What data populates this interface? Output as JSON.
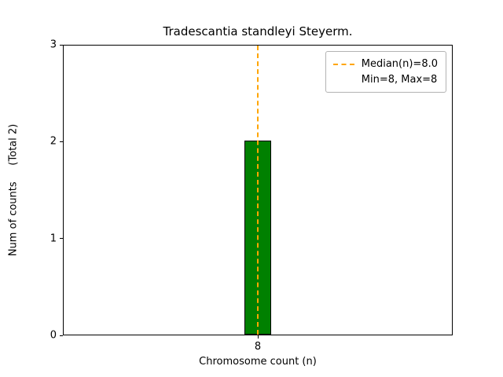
{
  "chart_data": {
    "type": "bar",
    "title": "Tradescantia standleyi Steyerm.",
    "xlabel": "Chromosome count (n)",
    "ylabel": "Num of counts     (Total 2)",
    "categories": [
      "8"
    ],
    "values": [
      2
    ],
    "total": 2,
    "ylim": [
      0,
      3
    ],
    "yticks": [
      0,
      1,
      2,
      3
    ],
    "bar_color": "#008000",
    "bar_edge_color": "#000000",
    "median": 8.0,
    "min": 8,
    "max": 8,
    "median_line_color": "#FFA500",
    "median_line_style": "dashed",
    "grid": false,
    "legend": {
      "position": "upper right",
      "entries": [
        "Median(n)=8.0",
        "Min=8, Max=8"
      ]
    }
  }
}
